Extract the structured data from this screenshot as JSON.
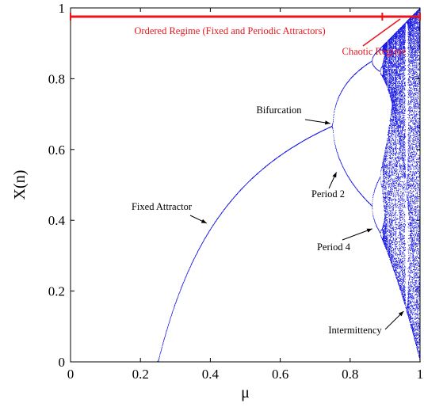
{
  "chart_data": {
    "type": "scatter",
    "title": "",
    "subtitle": "",
    "xlabel": "μ",
    "ylabel": "X(n)",
    "xlim": [
      0,
      1
    ],
    "ylim": [
      0,
      1
    ],
    "x_ticks": [
      0,
      0.2,
      0.4,
      0.6,
      0.8,
      1
    ],
    "x_tick_labels": [
      "0",
      "0.2",
      "0.4",
      "0.6",
      "0.8",
      "1"
    ],
    "y_ticks": [
      0,
      0.2,
      0.4,
      0.6,
      0.8,
      1
    ],
    "y_tick_labels": [
      "0",
      "0.2",
      "0.4",
      "0.6",
      "0.8",
      "1"
    ],
    "grid": false,
    "legend": "none",
    "series": [
      {
        "description_visible": "Bifurcation diagram, long-run values of X(n) plotted against μ (blue dots)",
        "color": "#1a1ae6",
        "map": "logistic, x(n+1) = 4·μ·x(n)·(1 - x(n))",
        "points_sample": [
          {
            "x": 0.1,
            "y": 0.0
          },
          {
            "x": 0.25,
            "y": 0.0
          },
          {
            "x": 0.4,
            "y": 0.375
          },
          {
            "x": 0.6,
            "y": 0.583
          },
          {
            "x": 0.75,
            "y": 0.667
          },
          {
            "x": 0.8,
            "y": 0.513
          },
          {
            "x": 0.8,
            "y": 0.8
          },
          {
            "x": 0.87,
            "y": 0.44
          },
          {
            "x": 0.87,
            "y": 0.85
          }
        ]
      }
    ],
    "regimes": [
      {
        "label": "Ordered Regime (Fixed and Periodic Attractors)",
        "from": 0.0,
        "to": 0.892,
        "color": "#e8151b"
      },
      {
        "label": "Chaotic Regime",
        "from": 0.892,
        "to": 1.0,
        "color": "#e8151b"
      }
    ],
    "annotations": [
      {
        "text": "Fixed Attractor",
        "points_to": {
          "x": 0.385,
          "y": 0.385
        }
      },
      {
        "text": "Bifurcation",
        "points_to": {
          "x": 0.75,
          "y": 0.667
        }
      },
      {
        "text": "Period 2",
        "points_to": {
          "x": 0.77,
          "y": 0.545
        }
      },
      {
        "text": "Period 4",
        "points_to": {
          "x": 0.87,
          "y": 0.385
        }
      },
      {
        "text": "Intermittency",
        "points_to": {
          "x": 0.96,
          "y": 0.15
        }
      }
    ]
  }
}
